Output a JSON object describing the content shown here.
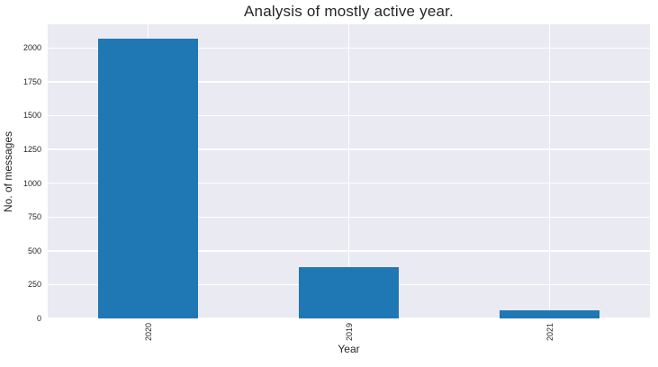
{
  "chart_data": {
    "type": "bar",
    "title": "Analysis of mostly active year.",
    "xlabel": "Year",
    "ylabel": "No. of messages",
    "categories": [
      "2020",
      "2019",
      "2021"
    ],
    "values": [
      2070,
      380,
      60
    ],
    "yticks": [
      0,
      250,
      500,
      750,
      1000,
      1250,
      1500,
      1750,
      2000
    ],
    "ylim": [
      0,
      2175
    ],
    "xtick_rotation": 90,
    "grid": true,
    "legend": false,
    "bar_width_fraction": 0.5,
    "bar_color": "#1f77b4",
    "plot_background": "#eaeaf2",
    "grid_color": "#ffffff",
    "text_color": "#262626",
    "figure_background": "#ffffff"
  }
}
